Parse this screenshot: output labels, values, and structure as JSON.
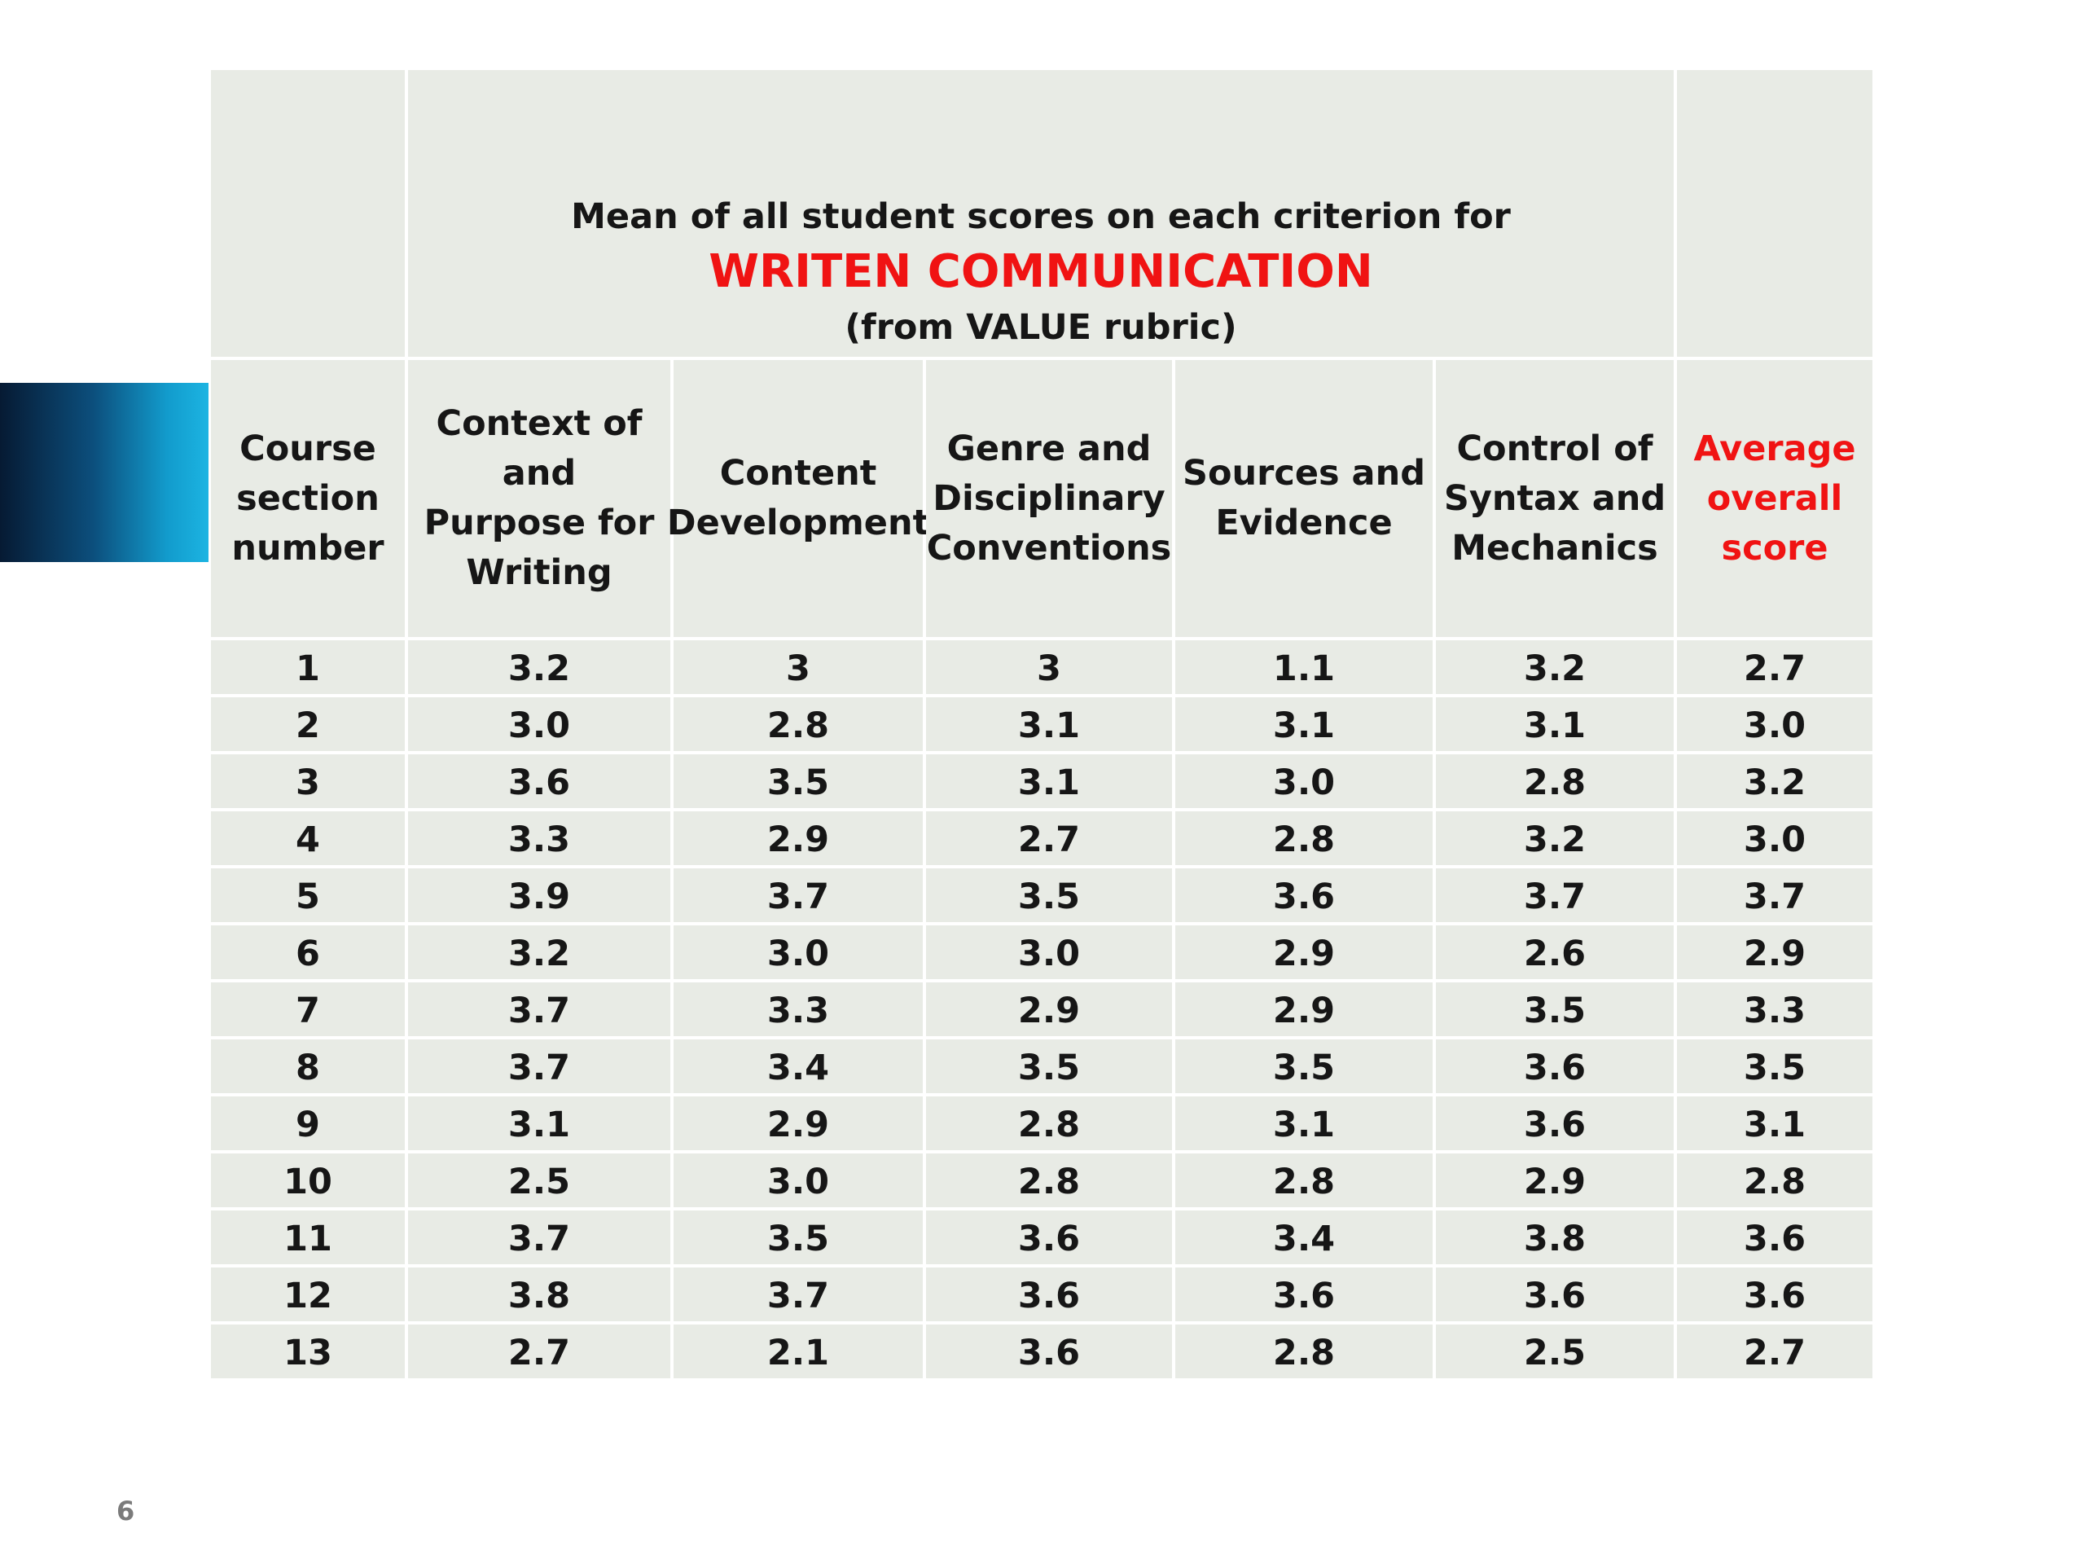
{
  "title": {
    "line1": "Mean of all student scores on each criterion for",
    "line2": "WRITEN COMMUNICATION",
    "line3": "(from VALUE rubric)"
  },
  "columns": [
    "Course\nsection\nnumber",
    "Context of and\nPurpose for\nWriting",
    "Content\nDevelopment",
    "Genre and\nDisciplinary\nConventions",
    "Sources and\nEvidence",
    "Control of\nSyntax and\nMechanics",
    "Average\noverall\nscore"
  ],
  "rows": [
    [
      "1",
      "3.2",
      "3",
      "3",
      "1.1",
      "3.2",
      "2.7"
    ],
    [
      "2",
      "3.0",
      "2.8",
      "3.1",
      "3.1",
      "3.1",
      "3.0"
    ],
    [
      "3",
      "3.6",
      "3.5",
      "3.1",
      "3.0",
      "2.8",
      "3.2"
    ],
    [
      "4",
      "3.3",
      "2.9",
      "2.7",
      "2.8",
      "3.2",
      "3.0"
    ],
    [
      "5",
      "3.9",
      "3.7",
      "3.5",
      "3.6",
      "3.7",
      "3.7"
    ],
    [
      "6",
      "3.2",
      "3.0",
      "3.0",
      "2.9",
      "2.6",
      "2.9"
    ],
    [
      "7",
      "3.7",
      "3.3",
      "2.9",
      "2.9",
      "3.5",
      "3.3"
    ],
    [
      "8",
      "3.7",
      "3.4",
      "3.5",
      "3.5",
      "3.6",
      "3.5"
    ],
    [
      "9",
      "3.1",
      "2.9",
      "2.8",
      "3.1",
      "3.6",
      "3.1"
    ],
    [
      "10",
      "2.5",
      "3.0",
      "2.8",
      "2.8",
      "2.9",
      "2.8"
    ],
    [
      "11",
      "3.7",
      "3.5",
      "3.6",
      "3.4",
      "3.8",
      "3.6"
    ],
    [
      "12",
      "3.8",
      "3.7",
      "3.6",
      "3.6",
      "3.6",
      "3.6"
    ],
    [
      "13",
      "2.7",
      "2.1",
      "3.6",
      "2.8",
      "2.5",
      "2.7"
    ]
  ],
  "page_number": "6",
  "colors": {
    "accent_red": "#f01313",
    "cell_background": "#e8ebe5",
    "accent_bar_dark": "#061a33",
    "accent_bar_light": "#1cb4e2"
  }
}
